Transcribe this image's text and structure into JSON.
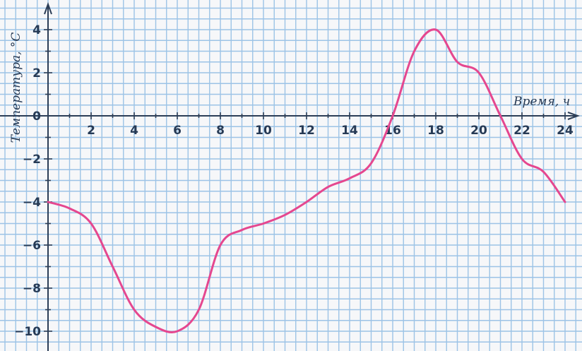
{
  "chart_data": {
    "type": "line",
    "title": "",
    "xlabel": "Время, ч",
    "ylabel": "Температура, °C",
    "xlim": [
      0,
      25
    ],
    "ylim": [
      -10.5,
      4.5
    ],
    "x_ticks": [
      2,
      4,
      6,
      8,
      10,
      12,
      14,
      16,
      18,
      20,
      22,
      24
    ],
    "y_ticks": [
      4,
      2,
      0,
      -2,
      -4,
      -6,
      -8,
      -10
    ],
    "grid": true,
    "series": [
      {
        "name": "",
        "color": "#e5478f",
        "x": [
          0,
          1,
          2,
          3,
          4,
          5,
          6,
          7,
          8,
          9,
          10,
          11,
          12,
          13,
          14,
          15,
          16,
          17,
          18,
          19,
          20,
          21,
          22,
          23,
          24
        ],
        "y": [
          -4,
          -4.3,
          -5,
          -7,
          -9,
          -9.8,
          -10,
          -9,
          -6,
          -5.3,
          -5,
          -4.6,
          -4,
          -3.3,
          -2.9,
          -2.2,
          0,
          3,
          4,
          2.5,
          2,
          0,
          -2,
          -2.6,
          -4
        ]
      }
    ]
  },
  "axis_labels": {
    "x_title": "Время, ч",
    "y_title": "Температура, °C"
  },
  "colors": {
    "grid": "#9cc3e6",
    "axis": "#2c3e57",
    "line": "#e5478f",
    "background": "#f6f7f9"
  }
}
